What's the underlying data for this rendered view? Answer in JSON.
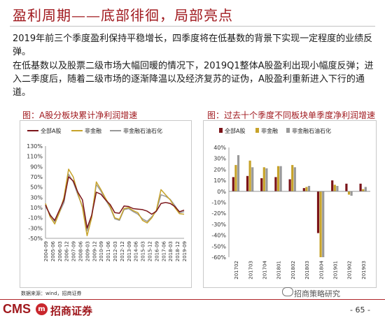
{
  "page": {
    "title": "盈利周期——底部徘徊，局部亮点",
    "para1": "2019年前三个季度盈利保持平稳增长，四季度将在低基数的背景下实现一定程度的业绩反弹。",
    "para2": "在低基数以及股票二级市场大幅回暖的情况下，2019Q1整体A股盈利出现小幅度反弹；进入二季度后，随着二级市场的逐渐降温以及经济复苏的证伪，A股盈利重新进入下行的通道。",
    "source": "数据来源：wind，招商证券",
    "brand_en": "CMS",
    "brand_logo": "m",
    "brand_cn": "招商证券",
    "watermark": "招商策略研究",
    "page_number": "- 65 -",
    "accent_color": "#a0191e"
  },
  "chart_data": [
    {
      "type": "line",
      "title": "图：A股分板块累计净利润增速",
      "x": [
        "2004-09",
        "2005-03",
        "2005-09",
        "2006-03",
        "2006-09",
        "2007-03",
        "2007-09",
        "2008-03",
        "2008-09",
        "2009-03",
        "2009-09",
        "2010-03",
        "2010-09",
        "2011-03",
        "2011-09",
        "2012-03",
        "2012-09",
        "2013-03",
        "2013-09",
        "2014-03",
        "2014-09",
        "2015-03",
        "2015-09",
        "2016-03",
        "2016-09",
        "2017-03",
        "2017-09",
        "2018-03",
        "2018-09",
        "2019-03",
        "2019-09"
      ],
      "x_tick_labels": [
        "2004-09",
        "2005-06",
        "2006-03",
        "2006-12",
        "2007-09",
        "2008-06",
        "2009-03",
        "2009-12",
        "2010-09",
        "2011-06",
        "2012-03",
        "2012-12",
        "2013-09",
        "2014-06",
        "2015-03",
        "2015-12",
        "2016-09",
        "2017-06",
        "2018-03",
        "2018-12",
        "2019-09"
      ],
      "series": [
        {
          "name": "全部A股",
          "color": "#7b1419",
          "values": [
            15,
            -5,
            -15,
            5,
            25,
            70,
            62,
            40,
            25,
            -30,
            -5,
            40,
            36,
            25,
            16,
            0,
            -1,
            13,
            12,
            8,
            7,
            6,
            3,
            -3,
            3,
            18,
            20,
            18,
            12,
            2,
            5
          ]
        },
        {
          "name": "非金融",
          "color": "#c7a32a",
          "values": [
            18,
            -8,
            -22,
            0,
            30,
            85,
            70,
            38,
            10,
            -45,
            -10,
            60,
            45,
            28,
            12,
            -10,
            -13,
            8,
            10,
            4,
            0,
            -15,
            -20,
            -10,
            5,
            45,
            35,
            25,
            10,
            -2,
            -3
          ]
        },
        {
          "name": "非金融石油石化",
          "color": "#999999",
          "values": [
            12,
            -3,
            -18,
            0,
            20,
            75,
            60,
            35,
            12,
            -35,
            -5,
            55,
            42,
            25,
            10,
            -12,
            -15,
            6,
            8,
            2,
            -3,
            -12,
            -17,
            -8,
            3,
            35,
            32,
            26,
            14,
            0,
            2
          ]
        }
      ],
      "ylim": [
        -50,
        130
      ],
      "yticks": [
        "130%",
        "110%",
        "90%",
        "70%",
        "50%",
        "30%",
        "10%",
        "-10%",
        "-30%",
        "-50%"
      ],
      "legend": "top"
    },
    {
      "type": "bar",
      "title": "图：过去十个季度不同板块单季度净利润增速",
      "categories": [
        "201702",
        "201703",
        "201704",
        "201801",
        "201802",
        "201803",
        "201804",
        "201901",
        "201902",
        "201903"
      ],
      "series": [
        {
          "name": "全部A股",
          "color": "#7b1419",
          "values": [
            13,
            14,
            12,
            13,
            11,
            3,
            -38,
            10,
            7,
            7
          ]
        },
        {
          "name": "非金融",
          "color": "#c7a32a",
          "values": [
            24,
            28,
            22,
            23,
            24,
            4,
            -60,
            6,
            -3,
            2
          ]
        },
        {
          "name": "非金融石油石化",
          "color": "#999999",
          "values": [
            33,
            22,
            21,
            23,
            22,
            5,
            -60,
            5,
            -4,
            4
          ]
        }
      ],
      "ylim": [
        -60,
        40
      ],
      "yticks": [
        "40%",
        "30%",
        "20%",
        "10%",
        "0%",
        "-10%",
        "-20%",
        "-30%",
        "-40%",
        "-50%",
        "-60%"
      ],
      "legend": "top"
    }
  ]
}
